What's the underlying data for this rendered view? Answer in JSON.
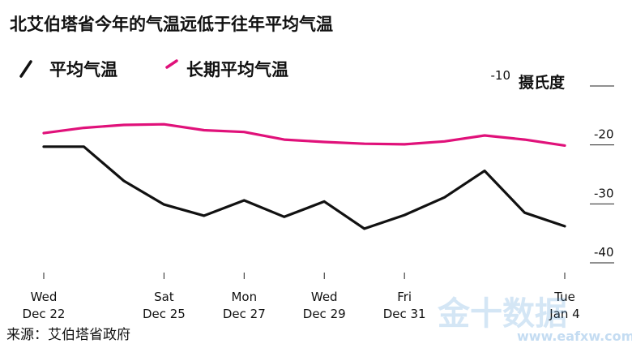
{
  "title": "北艾伯塔省今年的气温远低于往年平均气温",
  "source": "来源：艾伯塔省政府",
  "watermark": {
    "main": "金十数据",
    "sub": "www.eafxw.com"
  },
  "colors": {
    "avg": "#111111",
    "long": "#e0117a",
    "grid": "#222222"
  },
  "chart_data": {
    "type": "line",
    "title": "北艾伯塔省今年的气温远低于往年平均气温",
    "unit": "摄氏度",
    "xlabel": "",
    "ylabel": "摄氏度",
    "ylim": [
      -40,
      -10
    ],
    "yticks": [
      {
        "value": -10,
        "label": "-10"
      },
      {
        "value": -20,
        "label": "-20"
      },
      {
        "value": -30,
        "label": "-30"
      },
      {
        "value": -40,
        "label": "-40"
      }
    ],
    "xticks": [
      {
        "index": 0,
        "day": "Wed",
        "date": "Dec 22"
      },
      {
        "index": 3,
        "day": "Sat",
        "date": "Dec 25"
      },
      {
        "index": 5,
        "day": "Mon",
        "date": "Dec 27"
      },
      {
        "index": 7,
        "day": "Wed",
        "date": "Dec 29"
      },
      {
        "index": 9,
        "day": "Fri",
        "date": "Dec 31"
      },
      {
        "index": 13,
        "day": "Tue",
        "date": "Jan 4"
      }
    ],
    "x": [
      "Dec 22",
      "Dec 23",
      "Dec 24",
      "Dec 25",
      "Dec 26",
      "Dec 27",
      "Dec 28",
      "Dec 29",
      "Dec 30",
      "Dec 31",
      "Jan 1",
      "Jan 2",
      "Jan 3",
      "Jan 4"
    ],
    "grid": false,
    "legend": "top-left",
    "series": [
      {
        "name": "平均气温",
        "color": "#111111",
        "values": [
          -20.3,
          -20.3,
          -26.1,
          -30.1,
          -32.0,
          -29.4,
          -32.2,
          -29.6,
          -34.2,
          -31.9,
          -28.9,
          -24.4,
          -31.5,
          -33.8
        ]
      },
      {
        "name": "长期平均气温",
        "color": "#e0117a",
        "values": [
          -18.0,
          -17.1,
          -16.6,
          -16.5,
          -17.5,
          -17.8,
          -19.1,
          -19.5,
          -19.8,
          -19.9,
          -19.4,
          -18.4,
          -19.1,
          -20.1
        ]
      }
    ]
  }
}
